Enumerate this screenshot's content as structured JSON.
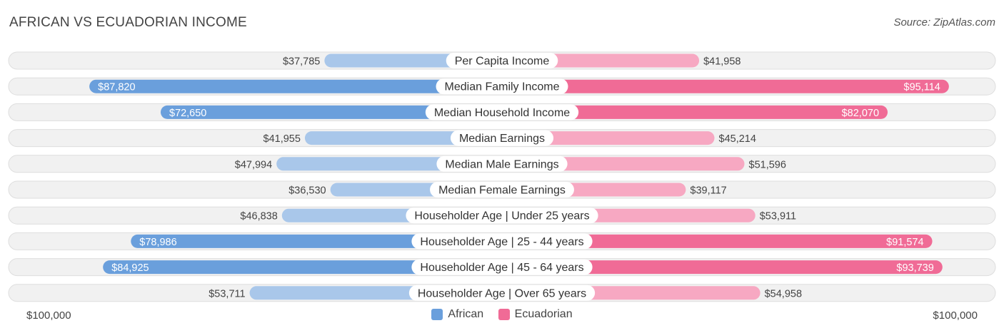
{
  "header": {
    "title": "AFRICAN VS ECUADORIAN INCOME",
    "source": "Source: ZipAtlas.com"
  },
  "colors": {
    "african_strong": "#6a9fdc",
    "african_light": "#a9c7ea",
    "ecuadorian_strong": "#f06b96",
    "ecuadorian_light": "#f7a8c2",
    "row_bg": "#f1f1f1",
    "row_border": "#dedede"
  },
  "axis": {
    "left_label": "$100,000",
    "right_label": "$100,000"
  },
  "legend": {
    "african_label": "African",
    "ecuadorian_label": "Ecuadorian"
  },
  "chart_data": {
    "type": "bar",
    "title": "AFRICAN VS ECUADORIAN INCOME",
    "xlim": [
      0,
      100000
    ],
    "legend_position": "bottom-center",
    "categories": [
      "Per Capita Income",
      "Median Family Income",
      "Median Household Income",
      "Median Earnings",
      "Median Male Earnings",
      "Median Female Earnings",
      "Householder Age | Under 25 years",
      "Householder Age | 25 - 44 years",
      "Householder Age | 45 - 64 years",
      "Householder Age | Over 65 years"
    ],
    "series": [
      {
        "name": "African",
        "values": [
          37785,
          87820,
          72650,
          41955,
          47994,
          36530,
          46838,
          78986,
          84925,
          53711
        ],
        "labels": [
          "$37,785",
          "$87,820",
          "$72,650",
          "$41,955",
          "$47,994",
          "$36,530",
          "$46,838",
          "$78,986",
          "$84,925",
          "$53,711"
        ]
      },
      {
        "name": "Ecuadorian",
        "values": [
          41958,
          95114,
          82070,
          45214,
          51596,
          39117,
          53911,
          91574,
          93739,
          54958
        ],
        "labels": [
          "$41,958",
          "$95,114",
          "$82,070",
          "$45,214",
          "$51,596",
          "$39,117",
          "$53,911",
          "$91,574",
          "$93,739",
          "$54,958"
        ]
      }
    ]
  }
}
